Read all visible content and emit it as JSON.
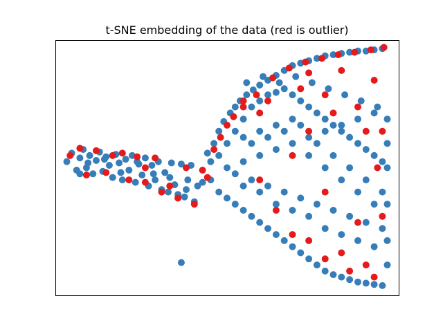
{
  "chart_data": {
    "type": "scatter",
    "title": "t-SNE embedding of the data (red is outlier)",
    "xlabel": "",
    "ylabel": "",
    "xlim": [
      -1.05,
      1.05
    ],
    "ylim": [
      -1.05,
      1.05
    ],
    "ticks_visible": false,
    "grid": false,
    "legend": "none",
    "colors": {
      "inlier": "#377eb8",
      "outlier": "#e41a1c"
    },
    "series": [
      {
        "role": "inlier",
        "points": [
          [
            -0.98,
            0.05
          ],
          [
            -0.95,
            0.12
          ],
          [
            -0.92,
            -0.02
          ],
          [
            -0.9,
            0.08
          ],
          [
            -0.88,
            0.15
          ],
          [
            -0.86,
            0.0
          ],
          [
            -0.84,
            0.1
          ],
          [
            -0.82,
            -0.05
          ],
          [
            -0.8,
            0.06
          ],
          [
            -0.78,
            0.13
          ],
          [
            -0.76,
            -0.03
          ],
          [
            -0.74,
            0.09
          ],
          [
            -0.72,
            0.02
          ],
          [
            -0.7,
            -0.08
          ],
          [
            -0.68,
            0.11
          ],
          [
            -0.66,
            0.04
          ],
          [
            -0.64,
            -0.1
          ],
          [
            -0.62,
            0.07
          ],
          [
            -0.6,
            -0.02
          ],
          [
            -0.58,
            0.1
          ],
          [
            -0.56,
            -0.12
          ],
          [
            -0.54,
            0.03
          ],
          [
            -0.52,
            -0.06
          ],
          [
            -0.5,
            0.08
          ],
          [
            -0.48,
            -0.15
          ],
          [
            -0.46,
            0.02
          ],
          [
            -0.44,
            -0.1
          ],
          [
            -0.42,
            0.05
          ],
          [
            -0.4,
            -0.18
          ],
          [
            -0.38,
            -0.04
          ],
          [
            -0.36,
            -0.2
          ],
          [
            -0.34,
            0.04
          ],
          [
            -0.32,
            -0.14
          ],
          [
            -0.3,
            -0.22
          ],
          [
            -0.28,
            0.03
          ],
          [
            -0.26,
            -0.24
          ],
          [
            -0.24,
            -0.1
          ],
          [
            -0.22,
            0.02
          ],
          [
            -0.2,
            -0.28
          ],
          [
            -0.18,
            -0.15
          ],
          [
            -0.9,
            -0.05
          ],
          [
            -0.85,
            0.04
          ],
          [
            -0.75,
            0.07
          ],
          [
            -0.65,
            -0.04
          ],
          [
            -0.55,
            0.05
          ],
          [
            -0.45,
            -0.05
          ],
          [
            -0.35,
            -0.08
          ],
          [
            -0.25,
            -0.18
          ],
          [
            -0.15,
            -0.12
          ],
          [
            -0.1,
            0.05
          ],
          [
            -0.12,
            0.12
          ],
          [
            -0.08,
            0.2
          ],
          [
            -0.05,
            0.3
          ],
          [
            -0.02,
            0.38
          ],
          [
            0.02,
            0.45
          ],
          [
            0.05,
            0.5
          ],
          [
            0.08,
            0.55
          ],
          [
            0.12,
            0.6
          ],
          [
            0.16,
            0.64
          ],
          [
            0.2,
            0.68
          ],
          [
            0.25,
            0.72
          ],
          [
            0.3,
            0.76
          ],
          [
            0.35,
            0.8
          ],
          [
            0.4,
            0.84
          ],
          [
            0.45,
            0.86
          ],
          [
            0.5,
            0.88
          ],
          [
            0.55,
            0.9
          ],
          [
            0.6,
            0.92
          ],
          [
            0.65,
            0.93
          ],
          [
            0.7,
            0.94
          ],
          [
            0.75,
            0.95
          ],
          [
            0.8,
            0.96
          ],
          [
            0.85,
            0.96
          ],
          [
            0.9,
            0.97
          ],
          [
            0.95,
            0.98
          ],
          [
            -0.1,
            -0.1
          ],
          [
            -0.05,
            -0.2
          ],
          [
            0.0,
            -0.25
          ],
          [
            0.05,
            -0.3
          ],
          [
            0.1,
            -0.35
          ],
          [
            0.15,
            -0.4
          ],
          [
            0.2,
            -0.45
          ],
          [
            0.25,
            -0.5
          ],
          [
            0.3,
            -0.55
          ],
          [
            0.35,
            -0.6
          ],
          [
            0.4,
            -0.65
          ],
          [
            0.45,
            -0.7
          ],
          [
            0.5,
            -0.75
          ],
          [
            0.55,
            -0.8
          ],
          [
            0.6,
            -0.85
          ],
          [
            0.65,
            -0.88
          ],
          [
            0.7,
            -0.9
          ],
          [
            0.75,
            -0.92
          ],
          [
            0.8,
            -0.94
          ],
          [
            0.85,
            -0.95
          ],
          [
            0.9,
            -0.96
          ],
          [
            0.95,
            -0.97
          ],
          [
            -0.05,
            0.1
          ],
          [
            0.0,
            0.2
          ],
          [
            0.05,
            0.3
          ],
          [
            0.1,
            0.4
          ],
          [
            0.15,
            0.5
          ],
          [
            0.2,
            0.55
          ],
          [
            0.25,
            0.6
          ],
          [
            0.3,
            0.62
          ],
          [
            0.35,
            0.65
          ],
          [
            0.4,
            0.6
          ],
          [
            0.45,
            0.55
          ],
          [
            0.5,
            0.5
          ],
          [
            0.55,
            0.45
          ],
          [
            0.6,
            0.4
          ],
          [
            0.65,
            0.35
          ],
          [
            0.7,
            0.3
          ],
          [
            0.75,
            0.25
          ],
          [
            0.8,
            0.2
          ],
          [
            0.85,
            0.15
          ],
          [
            0.9,
            0.1
          ],
          [
            0.95,
            0.05
          ],
          [
            0.0,
            0.0
          ],
          [
            0.05,
            -0.05
          ],
          [
            0.1,
            0.05
          ],
          [
            0.15,
            -0.1
          ],
          [
            0.2,
            0.1
          ],
          [
            0.25,
            -0.15
          ],
          [
            0.3,
            0.15
          ],
          [
            0.35,
            -0.2
          ],
          [
            0.4,
            0.2
          ],
          [
            0.45,
            -0.25
          ],
          [
            0.5,
            0.25
          ],
          [
            0.55,
            -0.3
          ],
          [
            0.6,
            0.3
          ],
          [
            0.65,
            -0.35
          ],
          [
            0.7,
            0.35
          ],
          [
            0.75,
            -0.4
          ],
          [
            0.8,
            0.4
          ],
          [
            0.85,
            -0.45
          ],
          [
            0.9,
            0.45
          ],
          [
            0.95,
            -0.5
          ],
          [
            0.1,
            0.25
          ],
          [
            0.2,
            0.3
          ],
          [
            0.3,
            0.35
          ],
          [
            0.4,
            0.4
          ],
          [
            0.5,
            0.1
          ],
          [
            0.6,
            0.0
          ],
          [
            0.7,
            -0.1
          ],
          [
            0.8,
            -0.2
          ],
          [
            0.9,
            -0.3
          ],
          [
            0.15,
            0.2
          ],
          [
            0.25,
            0.25
          ],
          [
            0.35,
            0.3
          ],
          [
            0.45,
            0.35
          ],
          [
            0.55,
            0.2
          ],
          [
            0.65,
            0.1
          ],
          [
            0.75,
            0.0
          ],
          [
            0.85,
            -0.1
          ],
          [
            0.95,
            -0.2
          ],
          [
            0.1,
            -0.15
          ],
          [
            0.2,
            -0.2
          ],
          [
            0.3,
            -0.3
          ],
          [
            0.4,
            -0.35
          ],
          [
            0.5,
            -0.4
          ],
          [
            0.6,
            -0.5
          ],
          [
            0.7,
            -0.55
          ],
          [
            0.8,
            -0.6
          ],
          [
            0.9,
            -0.65
          ],
          [
            0.12,
            0.7
          ],
          [
            0.22,
            0.75
          ],
          [
            0.32,
            0.7
          ],
          [
            0.42,
            0.75
          ],
          [
            0.52,
            0.7
          ],
          [
            0.62,
            0.65
          ],
          [
            0.72,
            0.6
          ],
          [
            0.82,
            0.55
          ],
          [
            0.92,
            0.5
          ],
          [
            0.98,
            0.4
          ],
          [
            0.98,
            0.2
          ],
          [
            0.98,
            0.0
          ],
          [
            0.98,
            -0.3
          ],
          [
            0.98,
            -0.6
          ],
          [
            0.98,
            -0.8
          ],
          [
            -0.28,
            -0.78
          ]
        ]
      },
      {
        "role": "outlier",
        "points": [
          [
            -0.96,
            0.1
          ],
          [
            -0.9,
            0.16
          ],
          [
            -0.86,
            -0.06
          ],
          [
            -0.8,
            0.14
          ],
          [
            -0.74,
            -0.04
          ],
          [
            -0.7,
            0.1
          ],
          [
            -0.64,
            0.12
          ],
          [
            -0.6,
            -0.1
          ],
          [
            -0.55,
            0.09
          ],
          [
            -0.5,
            -0.12
          ],
          [
            -0.44,
            0.08
          ],
          [
            -0.4,
            -0.2
          ],
          [
            -0.3,
            -0.25
          ],
          [
            -0.25,
            0.0
          ],
          [
            -0.2,
            -0.3
          ],
          [
            -0.15,
            -0.02
          ],
          [
            -0.08,
            0.15
          ],
          [
            -0.04,
            0.25
          ],
          [
            0.0,
            0.35
          ],
          [
            0.04,
            0.42
          ],
          [
            0.1,
            0.5
          ],
          [
            0.18,
            0.6
          ],
          [
            0.28,
            0.74
          ],
          [
            0.38,
            0.82
          ],
          [
            0.48,
            0.87
          ],
          [
            0.58,
            0.9
          ],
          [
            0.68,
            0.93
          ],
          [
            0.78,
            0.95
          ],
          [
            0.88,
            0.97
          ],
          [
            0.96,
            0.99
          ],
          [
            0.5,
            0.78
          ],
          [
            0.7,
            0.8
          ],
          [
            0.9,
            0.72
          ],
          [
            0.8,
            0.5
          ],
          [
            0.6,
            0.6
          ],
          [
            0.95,
            0.3
          ],
          [
            0.92,
            0.0
          ],
          [
            0.5,
            0.3
          ],
          [
            0.3,
            -0.35
          ],
          [
            0.4,
            -0.55
          ],
          [
            0.6,
            -0.75
          ],
          [
            0.75,
            -0.85
          ],
          [
            0.85,
            -0.8
          ],
          [
            0.9,
            -0.9
          ],
          [
            0.7,
            -0.7
          ],
          [
            0.5,
            -0.6
          ],
          [
            0.2,
            -0.1
          ],
          [
            0.4,
            0.1
          ],
          [
            0.6,
            -0.2
          ],
          [
            0.8,
            -0.45
          ],
          [
            0.95,
            -0.4
          ],
          [
            0.1,
            0.55
          ],
          [
            0.2,
            0.45
          ],
          [
            -0.12,
            -0.08
          ],
          [
            -0.35,
            -0.15
          ],
          [
            -0.5,
            0.0
          ],
          [
            0.65,
            0.45
          ],
          [
            0.85,
            0.3
          ],
          [
            0.25,
            0.55
          ],
          [
            0.45,
            0.65
          ]
        ]
      }
    ]
  }
}
